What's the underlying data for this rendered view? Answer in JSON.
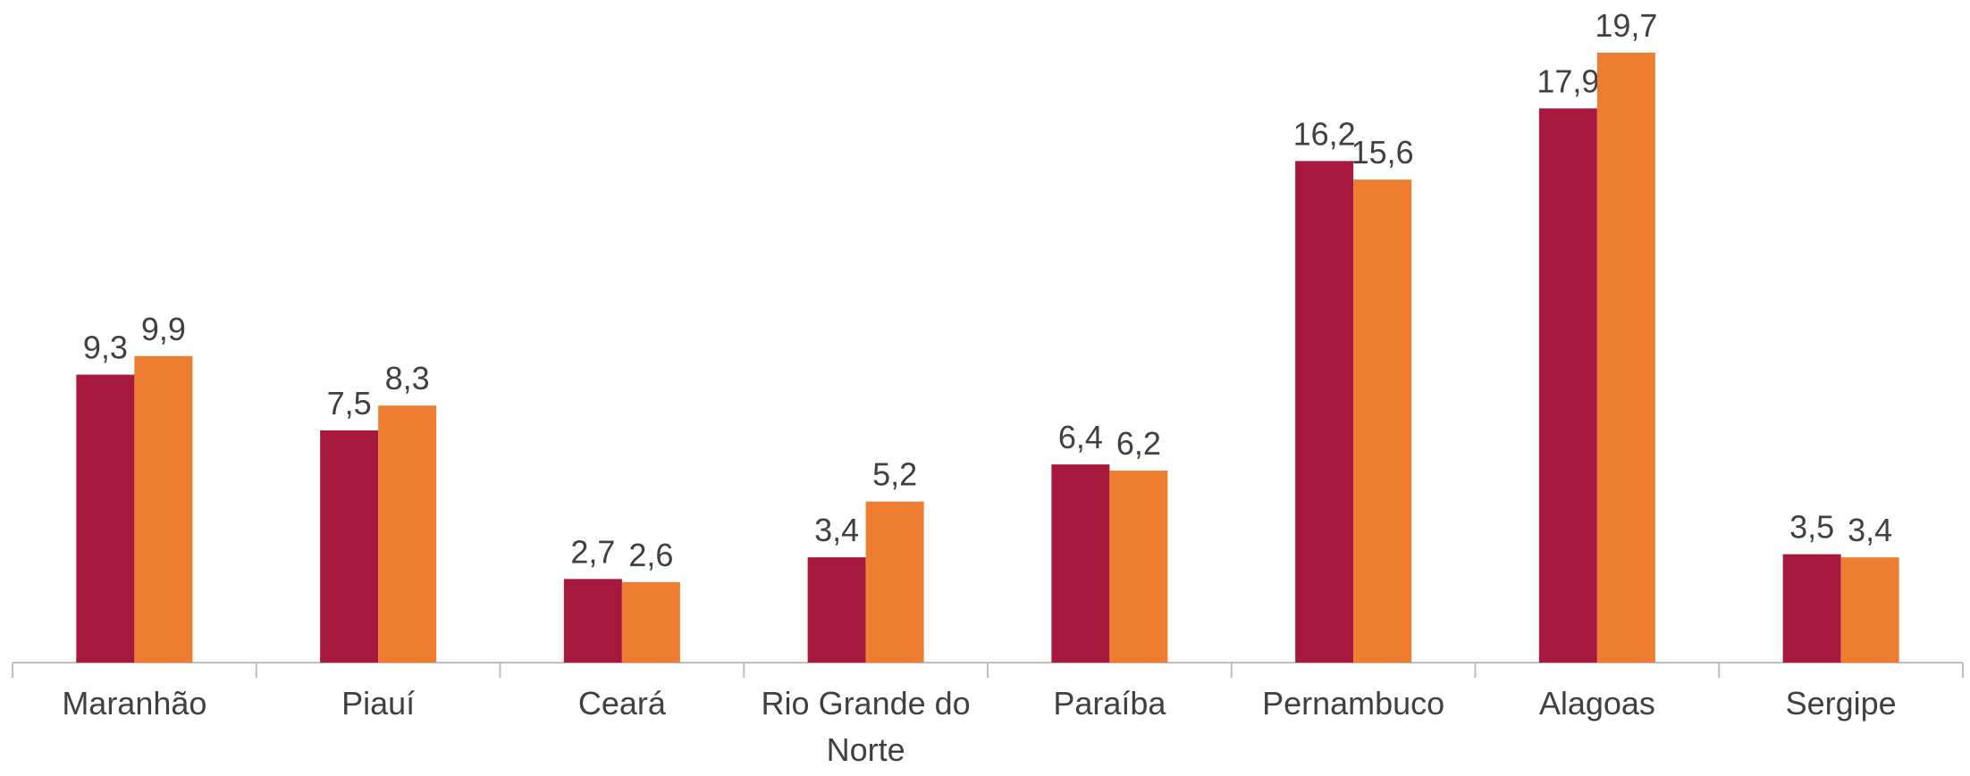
{
  "chart_data": {
    "type": "bar",
    "categories": [
      "Maranhão",
      "Piauí",
      "Ceará",
      "Rio Grande do Norte",
      "Paraíba",
      "Pernambuco",
      "Alagoas",
      "Sergipe"
    ],
    "series": [
      {
        "color": "#a6193c",
        "values": [
          9.3,
          7.5,
          2.7,
          3.4,
          6.4,
          16.2,
          17.9,
          3.5
        ],
        "value_labels": [
          "9,3",
          "7,5",
          "2,7",
          "3,4",
          "6,4",
          "16,2",
          "17,9",
          "3,5"
        ]
      },
      {
        "color": "#ed7d31",
        "values": [
          9.9,
          8.3,
          2.6,
          5.2,
          6.2,
          15.6,
          19.7,
          3.4
        ],
        "value_labels": [
          "9,9",
          "8,3",
          "2,6",
          "5,2",
          "6,2",
          "15,6",
          "19,7",
          "3,4"
        ]
      }
    ]
  }
}
